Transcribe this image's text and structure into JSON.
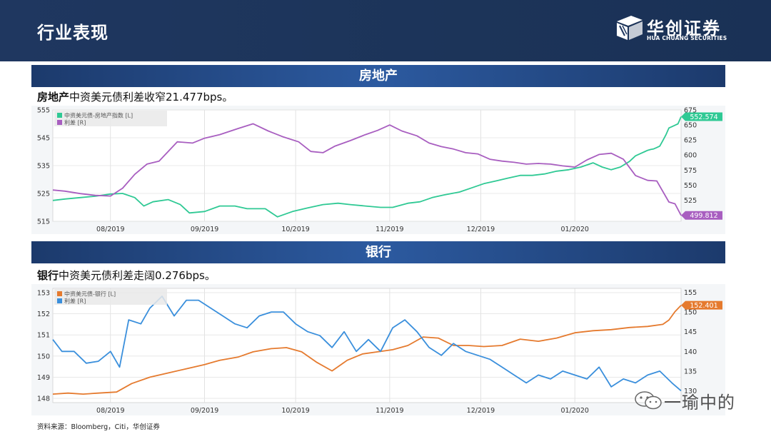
{
  "header": {
    "title": "行业表现",
    "logo_cn": "华创证券",
    "logo_en": "HUA CHUANG SECURITIES"
  },
  "section1": {
    "bar_title": "房地产",
    "subtitle_bold": "房地产",
    "subtitle_rest": "中资美元债利差收窄21.477bps。"
  },
  "section2": {
    "bar_title": "银行",
    "subtitle_bold": "银行",
    "subtitle_rest": "中资美元债利差走阔0.276bps。"
  },
  "footer": {
    "source": "资料来源：Bloomberg，Citi，华创证券"
  },
  "watermark": {
    "text": "一瑜中的"
  },
  "colors": {
    "header_bg": "#1f3760",
    "bar_bg": "#2c5aa0",
    "index_green": "#2fc994",
    "spread_purple": "#a85ec0",
    "index_orange": "#e57a2e",
    "spread_blue": "#3a8fdc",
    "grid": "#d8d8d8"
  },
  "chart_data": [
    {
      "type": "line",
      "title": "房地产",
      "x_ticks": [
        "08/2019",
        "09/2019",
        "10/2019",
        "11/2019",
        "12/2019",
        "01/2020"
      ],
      "x_range": [
        "2019-07-13",
        "2020-01-25"
      ],
      "y_left": {
        "ticks": [
          515,
          525,
          535,
          545,
          555
        ],
        "range": [
          515,
          555
        ]
      },
      "y_right": {
        "ticks": [
          525,
          550,
          575,
          600,
          625,
          650,
          675
        ],
        "range": [
          490,
          675
        ]
      },
      "legend": {
        "position": "top-left",
        "entries": [
          "中资美元债-房地产指数 [L]",
          "利差 [R]"
        ]
      },
      "grid": true,
      "series": [
        {
          "name": "中资美元债-房地产指数 [L]",
          "axis": "left",
          "color": "#2fc994",
          "end_label": "552.574",
          "points": [
            [
              "2019-07-13",
              522.5
            ],
            [
              "2019-07-17",
              523
            ],
            [
              "2019-07-22",
              523.5
            ],
            [
              "2019-07-27",
              524
            ],
            [
              "2019-08-01",
              524.8
            ],
            [
              "2019-08-05",
              525
            ],
            [
              "2019-08-09",
              523.5
            ],
            [
              "2019-08-12",
              520.5
            ],
            [
              "2019-08-15",
              522
            ],
            [
              "2019-08-20",
              522.8
            ],
            [
              "2019-08-24",
              521
            ],
            [
              "2019-08-27",
              518
            ],
            [
              "2019-09-01",
              518.5
            ],
            [
              "2019-09-06",
              520.5
            ],
            [
              "2019-09-11",
              520.5
            ],
            [
              "2019-09-15",
              519.5
            ],
            [
              "2019-09-21",
              519.5
            ],
            [
              "2019-09-25",
              516.6
            ],
            [
              "2019-09-30",
              518.5
            ],
            [
              "2019-10-05",
              519.8
            ],
            [
              "2019-10-10",
              521
            ],
            [
              "2019-10-15",
              521.5
            ],
            [
              "2019-10-19",
              521
            ],
            [
              "2019-10-24",
              520.5
            ],
            [
              "2019-10-29",
              520
            ],
            [
              "2019-11-02",
              520
            ],
            [
              "2019-11-07",
              521.5
            ],
            [
              "2019-11-11",
              522
            ],
            [
              "2019-11-15",
              523.5
            ],
            [
              "2019-11-19",
              524.5
            ],
            [
              "2019-11-24",
              525.5
            ],
            [
              "2019-11-28",
              527
            ],
            [
              "2019-12-02",
              528.5
            ],
            [
              "2019-12-06",
              529.5
            ],
            [
              "2019-12-10",
              530.5
            ],
            [
              "2019-12-14",
              531.5
            ],
            [
              "2019-12-18",
              531.5
            ],
            [
              "2019-12-22",
              532
            ],
            [
              "2019-12-26",
              533
            ],
            [
              "2019-12-30",
              533.5
            ],
            [
              "2020-01-03",
              534.5
            ],
            [
              "2020-01-07",
              536
            ],
            [
              "2020-01-10",
              534.5
            ],
            [
              "2020-01-13",
              533.5
            ],
            [
              "2020-01-16",
              534.5
            ],
            [
              "2020-01-19",
              536.5
            ],
            [
              "2020-01-21",
              538.5
            ],
            [
              "2020-01-23",
              539.5
            ],
            [
              "2020-01-24",
              540
            ],
            [
              "2020-01-25",
              540.5
            ],
            [
              "2020-01-26",
              540.8
            ],
            [
              "2020-01-27",
              541
            ],
            [
              "2020-01-28",
              541.5
            ],
            [
              "2020-01-29",
              542
            ],
            [
              "2020-01-30",
              544
            ],
            [
              "2020-01-31",
              546
            ],
            [
              "2020-02-01",
              548.5
            ],
            [
              "2020-02-02",
              549
            ],
            [
              "2020-02-03",
              549.5
            ],
            [
              "2020-02-04",
              550
            ],
            [
              "2020-02-05",
              552.574
            ]
          ]
        },
        {
          "name": "利差 [R]",
          "axis": "right",
          "color": "#a85ec0",
          "end_label": "499.812",
          "points": [
            [
              "2019-07-13",
              542
            ],
            [
              "2019-07-17",
              540
            ],
            [
              "2019-07-22",
              536
            ],
            [
              "2019-07-27",
              533
            ],
            [
              "2019-08-01",
              532
            ],
            [
              "2019-08-05",
              545
            ],
            [
              "2019-08-09",
              568
            ],
            [
              "2019-08-13",
              585
            ],
            [
              "2019-08-17",
              590
            ],
            [
              "2019-08-23",
              622
            ],
            [
              "2019-08-28",
              620
            ],
            [
              "2019-09-01",
              628
            ],
            [
              "2019-09-06",
              634
            ],
            [
              "2019-09-12",
              644
            ],
            [
              "2019-09-17",
              652
            ],
            [
              "2019-09-22",
              640
            ],
            [
              "2019-09-27",
              630
            ],
            [
              "2019-10-02",
              622
            ],
            [
              "2019-10-06",
              606
            ],
            [
              "2019-10-10",
              604
            ],
            [
              "2019-10-14",
              615
            ],
            [
              "2019-10-19",
              624
            ],
            [
              "2019-10-24",
              634
            ],
            [
              "2019-10-28",
              641
            ],
            [
              "2019-11-01",
              650
            ],
            [
              "2019-11-05",
              640
            ],
            [
              "2019-11-10",
              632
            ],
            [
              "2019-11-14",
              620
            ],
            [
              "2019-11-18",
              614
            ],
            [
              "2019-11-22",
              610
            ],
            [
              "2019-11-26",
              604
            ],
            [
              "2019-11-30",
              602
            ],
            [
              "2019-12-04",
              593
            ],
            [
              "2019-12-08",
              590
            ],
            [
              "2019-12-12",
              588
            ],
            [
              "2019-12-16",
              585
            ],
            [
              "2019-12-20",
              586
            ],
            [
              "2019-12-24",
              585
            ],
            [
              "2019-12-28",
              582
            ],
            [
              "2020-01-01",
              580
            ],
            [
              "2020-01-05",
              592
            ],
            [
              "2020-01-09",
              601
            ],
            [
              "2020-01-13",
              603
            ],
            [
              "2020-01-17",
              593
            ],
            [
              "2020-01-21",
              566
            ],
            [
              "2020-01-25",
              558
            ],
            [
              "2020-01-28",
              557
            ],
            [
              "2020-02-01",
              522
            ],
            [
              "2020-02-03",
              519
            ],
            [
              "2020-02-05",
              499.812
            ]
          ]
        }
      ]
    },
    {
      "type": "line",
      "title": "银行",
      "x_ticks": [
        "08/2019",
        "09/2019",
        "10/2019",
        "11/2019",
        "12/2019",
        "01/2020"
      ],
      "x_range": [
        "2019-07-13",
        "2020-01-25"
      ],
      "y_left": {
        "ticks": [
          148,
          149,
          150,
          151,
          152,
          153
        ],
        "range": [
          147.8,
          153.2
        ]
      },
      "y_right": {
        "ticks": [
          130,
          135,
          140,
          145,
          150,
          155
        ],
        "range": [
          127,
          156
        ]
      },
      "legend": {
        "position": "top-left",
        "entries": [
          "中资美元债-银行 [L]",
          "利差 [R]"
        ]
      },
      "grid": true,
      "series": [
        {
          "name": "中资美元债-银行 [L]",
          "axis": "left",
          "color": "#e57a2e",
          "end_label": "152.401",
          "points": [
            [
              "2019-07-13",
              148.2
            ],
            [
              "2019-07-18",
              148.25
            ],
            [
              "2019-07-23",
              148.2
            ],
            [
              "2019-07-28",
              148.25
            ],
            [
              "2019-08-03",
              148.3
            ],
            [
              "2019-08-08",
              148.7
            ],
            [
              "2019-08-14",
              149
            ],
            [
              "2019-08-20",
              149.2
            ],
            [
              "2019-08-26",
              149.4
            ],
            [
              "2019-09-01",
              149.6
            ],
            [
              "2019-09-06",
              149.8
            ],
            [
              "2019-09-12",
              149.95
            ],
            [
              "2019-09-17",
              150.2
            ],
            [
              "2019-09-23",
              150.35
            ],
            [
              "2019-09-28",
              150.4
            ],
            [
              "2019-10-03",
              150.2
            ],
            [
              "2019-10-08",
              149.7
            ],
            [
              "2019-10-13",
              149.3
            ],
            [
              "2019-10-18",
              149.8
            ],
            [
              "2019-10-23",
              150.1
            ],
            [
              "2019-10-28",
              150.2
            ],
            [
              "2019-11-02",
              150.3
            ],
            [
              "2019-11-07",
              150.5
            ],
            [
              "2019-11-12",
              150.9
            ],
            [
              "2019-11-17",
              150.85
            ],
            [
              "2019-11-22",
              150.5
            ],
            [
              "2019-11-27",
              150.5
            ],
            [
              "2019-12-02",
              150.45
            ],
            [
              "2019-12-08",
              150.5
            ],
            [
              "2019-12-14",
              150.8
            ],
            [
              "2019-12-20",
              150.7
            ],
            [
              "2019-12-26",
              150.85
            ],
            [
              "2020-01-01",
              151.1
            ],
            [
              "2020-01-07",
              151.2
            ],
            [
              "2020-01-13",
              151.25
            ],
            [
              "2020-01-19",
              151.35
            ],
            [
              "2020-01-25",
              151.4
            ],
            [
              "2020-01-30",
              151.5
            ],
            [
              "2020-02-01",
              151.7
            ],
            [
              "2020-02-03",
              152.1
            ],
            [
              "2020-02-05",
              152.401
            ]
          ]
        },
        {
          "name": "利差 [R]",
          "axis": "right",
          "color": "#3a8fdc",
          "end_label": "",
          "points": [
            [
              "2019-07-13",
              143
            ],
            [
              "2019-07-16",
              140
            ],
            [
              "2019-07-20",
              140
            ],
            [
              "2019-07-24",
              137
            ],
            [
              "2019-07-28",
              137.5
            ],
            [
              "2019-08-01",
              140
            ],
            [
              "2019-08-04",
              136
            ],
            [
              "2019-08-07",
              148
            ],
            [
              "2019-08-11",
              147
            ],
            [
              "2019-08-14",
              151
            ],
            [
              "2019-08-18",
              154
            ],
            [
              "2019-08-22",
              149
            ],
            [
              "2019-08-26",
              153
            ],
            [
              "2019-08-30",
              153
            ],
            [
              "2019-09-03",
              151
            ],
            [
              "2019-09-07",
              149
            ],
            [
              "2019-09-11",
              147
            ],
            [
              "2019-09-15",
              146
            ],
            [
              "2019-09-19",
              149
            ],
            [
              "2019-09-23",
              150
            ],
            [
              "2019-09-27",
              150
            ],
            [
              "2019-10-01",
              147
            ],
            [
              "2019-10-05",
              145
            ],
            [
              "2019-10-09",
              144
            ],
            [
              "2019-10-13",
              141
            ],
            [
              "2019-10-17",
              145
            ],
            [
              "2019-10-21",
              140
            ],
            [
              "2019-10-25",
              143
            ],
            [
              "2019-10-29",
              140
            ],
            [
              "2019-11-02",
              146
            ],
            [
              "2019-11-06",
              148
            ],
            [
              "2019-11-10",
              145
            ],
            [
              "2019-11-14",
              141
            ],
            [
              "2019-11-18",
              139
            ],
            [
              "2019-11-22",
              142
            ],
            [
              "2019-11-26",
              140
            ],
            [
              "2019-11-30",
              139
            ],
            [
              "2019-12-04",
              138
            ],
            [
              "2019-12-08",
              136
            ],
            [
              "2019-12-12",
              134
            ],
            [
              "2019-12-16",
              132
            ],
            [
              "2019-12-20",
              134
            ],
            [
              "2019-12-24",
              133
            ],
            [
              "2019-12-28",
              135
            ],
            [
              "2020-01-01",
              134
            ],
            [
              "2020-01-05",
              133
            ],
            [
              "2020-01-09",
              136
            ],
            [
              "2020-01-13",
              131
            ],
            [
              "2020-01-17",
              133
            ],
            [
              "2020-01-21",
              132
            ],
            [
              "2020-01-25",
              134
            ],
            [
              "2020-01-29",
              135
            ],
            [
              "2020-02-02",
              132
            ],
            [
              "2020-02-05",
              130
            ]
          ]
        }
      ]
    }
  ]
}
